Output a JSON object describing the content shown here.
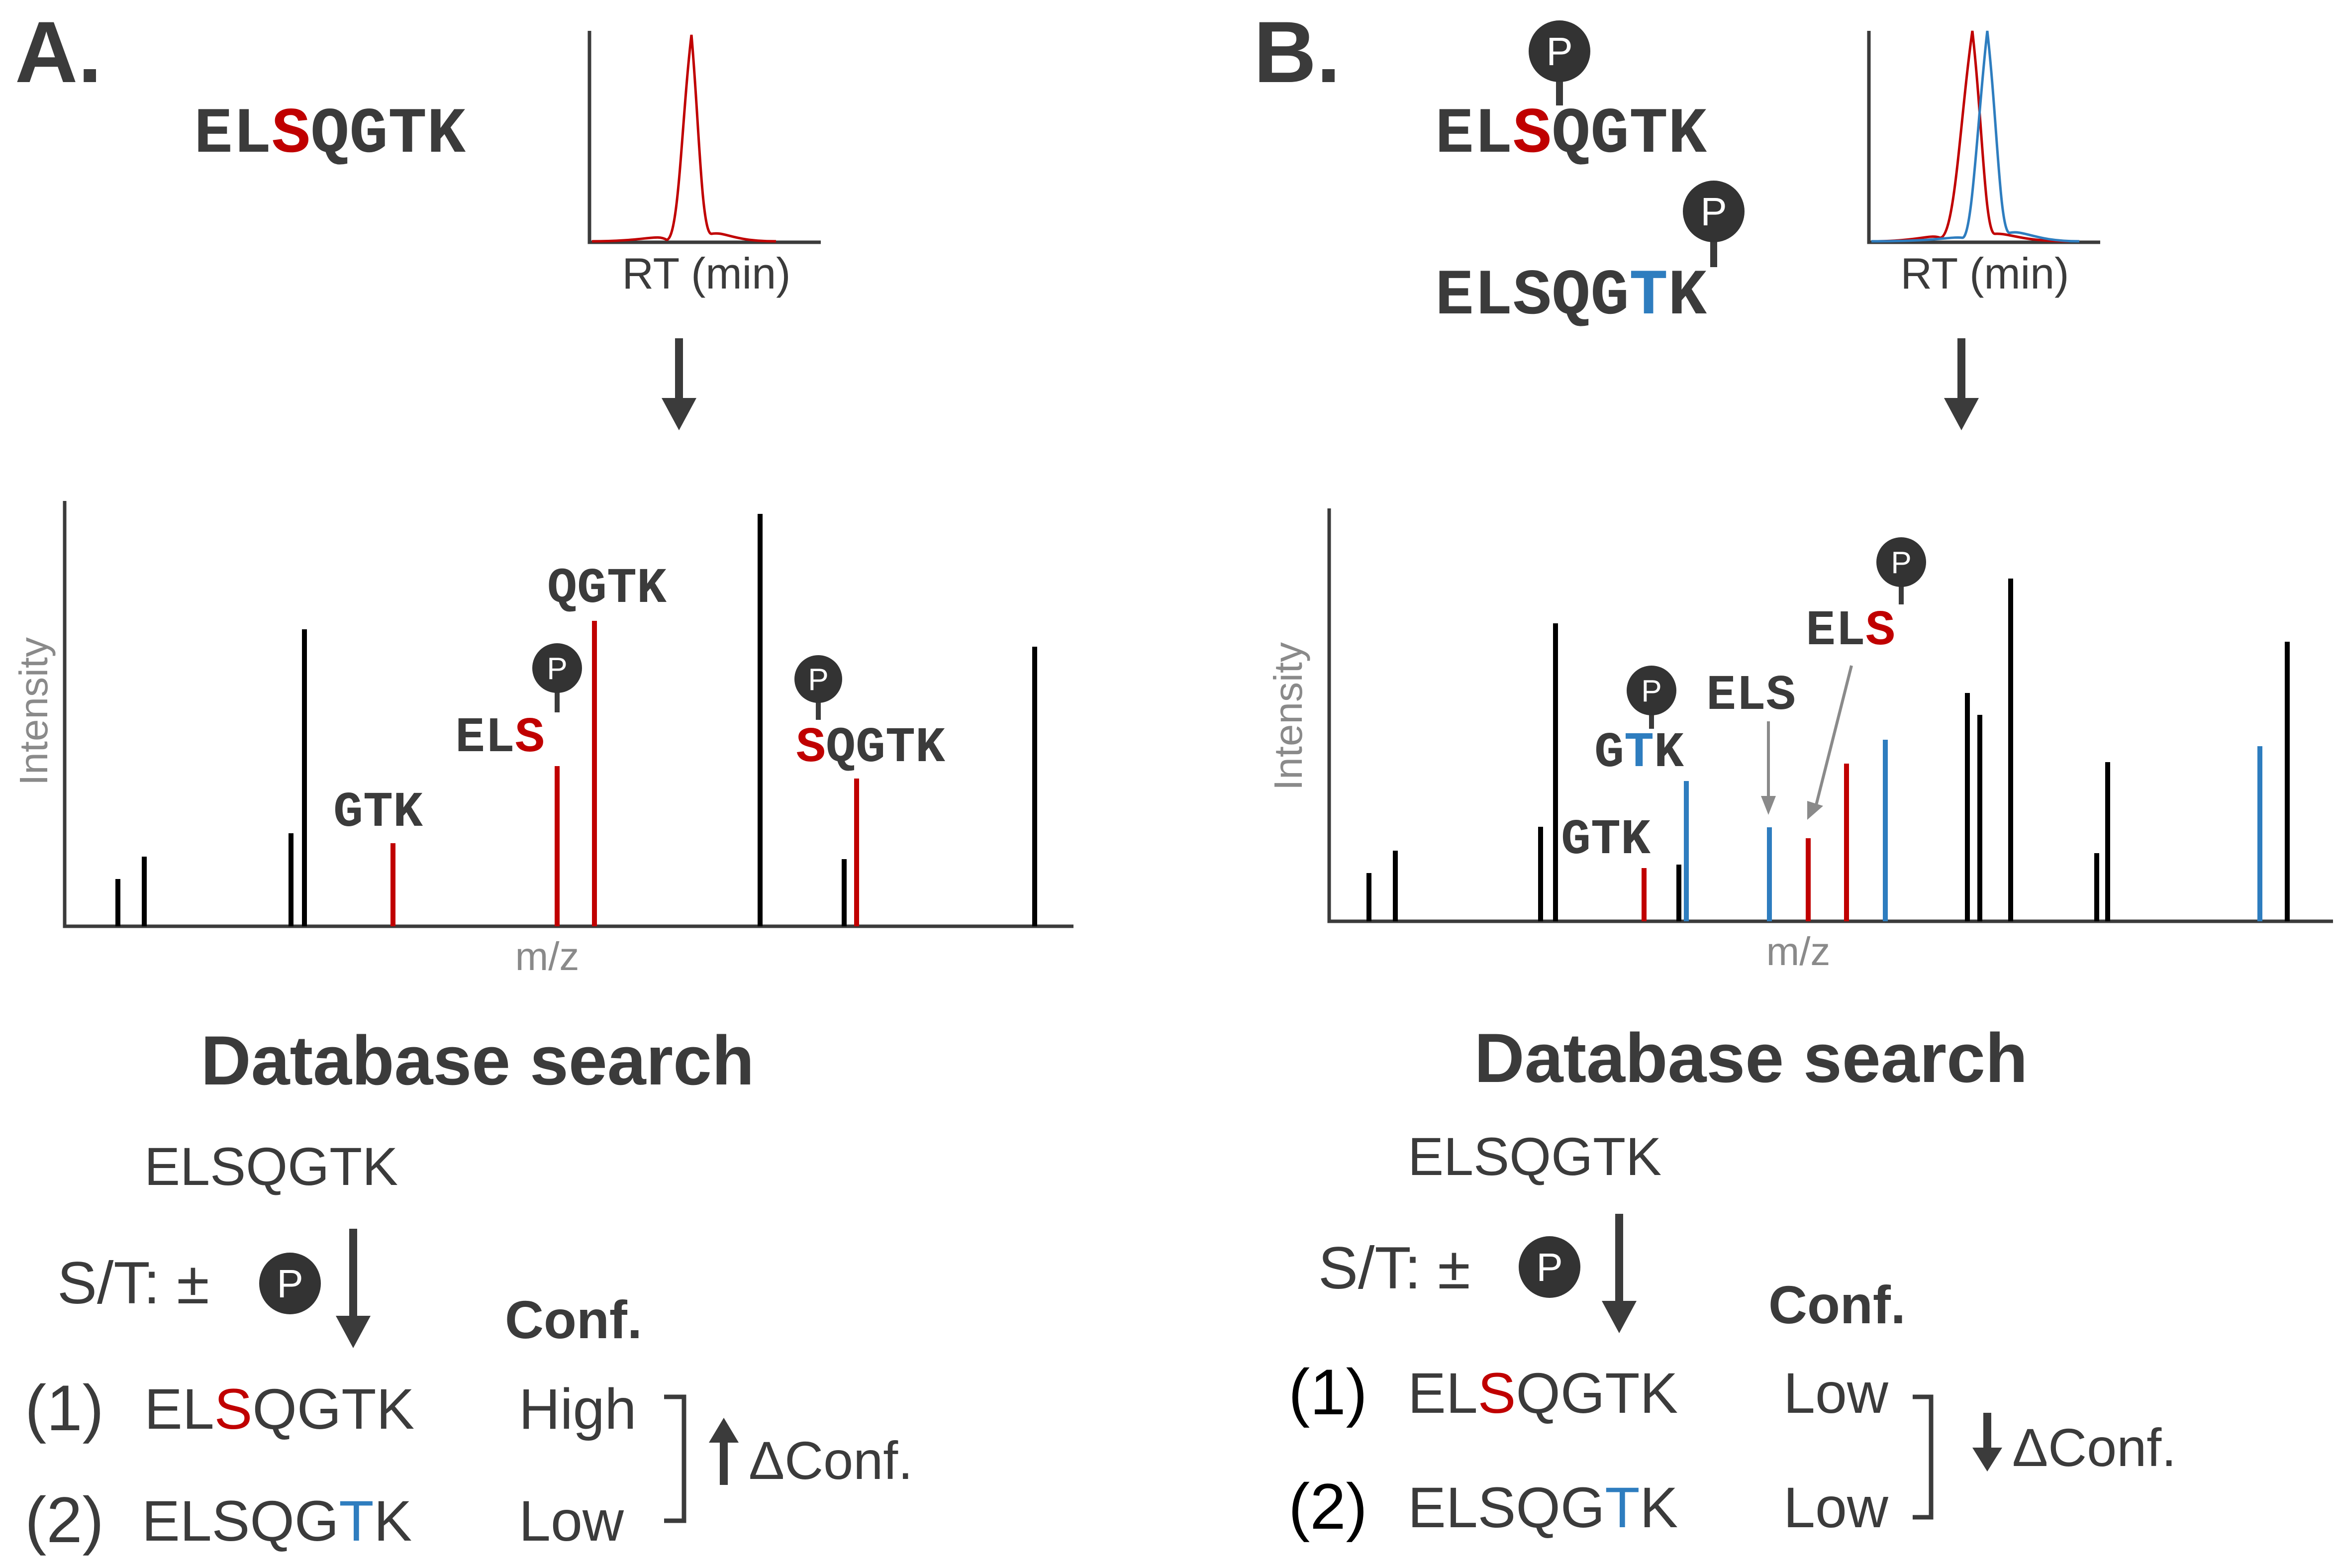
{
  "colors": {
    "dark": "#3b3b3b",
    "black": "#000000",
    "red": "#c00000",
    "blue": "#2e7dbf",
    "grey": "#8a8a8a",
    "pbadge": "#333333"
  },
  "icons": [
    "phosphate-badge-icon",
    "down-arrow-icon",
    "up-arrow-icon",
    "bracket-icon"
  ],
  "panelA": {
    "label": "A.",
    "peptide": {
      "pre": "EL",
      "site": "S",
      "post": "QGTK"
    },
    "chromatogram": {
      "xlabel": "RT (min)"
    },
    "spectrum": {
      "ylabel": "Intensity",
      "xlabel": "m/z",
      "labels": {
        "qgtk": "QGTK",
        "els_pre": "EL",
        "els_site": "S",
        "gtk": "GTK",
        "sqgtk_site": "S",
        "sqgtk_post": "QGTK",
        "p": "P"
      }
    },
    "search": {
      "title": "Database search",
      "peptide": "ELSQGTK",
      "mod_label": "S/T: ±",
      "p": "P",
      "conf_header": "Conf.",
      "rows": [
        {
          "rank": "(1)",
          "pre": "EL",
          "site": "S",
          "post": "QGTK",
          "conf": "High"
        },
        {
          "rank": "(2)",
          "pre": "ELSQG",
          "site": "T",
          "post": "K",
          "conf": "Low"
        }
      ],
      "delta": "ΔConf."
    }
  },
  "panelB": {
    "label": "B.",
    "peptides": [
      {
        "pre": "EL",
        "site": "S",
        "post": "QGTK"
      },
      {
        "pre": "ELSQG",
        "site": "T",
        "post": "K"
      }
    ],
    "chromatogram": {
      "xlabel": "RT (min)"
    },
    "spectrum": {
      "ylabel": "Intensity",
      "xlabel": "m/z",
      "labels": {
        "els_top_pre": "EL",
        "els_top_site": "S",
        "els_plain": "ELS",
        "gtk_g": "G",
        "gtk_t": "T",
        "gtk_k": "K",
        "gtk_plain": "GTK",
        "p": "P"
      }
    },
    "search": {
      "title": "Database search",
      "peptide": "ELSQGTK",
      "mod_label": "S/T: ±",
      "p": "P",
      "conf_header": "Conf.",
      "rows": [
        {
          "rank": "(1)",
          "pre": "EL",
          "site": "S",
          "post": "QGTK",
          "conf": "Low"
        },
        {
          "rank": "(2)",
          "pre": "ELSQG",
          "site": "T",
          "post": "K",
          "conf": "Low"
        }
      ],
      "delta": "ΔConf."
    }
  }
}
